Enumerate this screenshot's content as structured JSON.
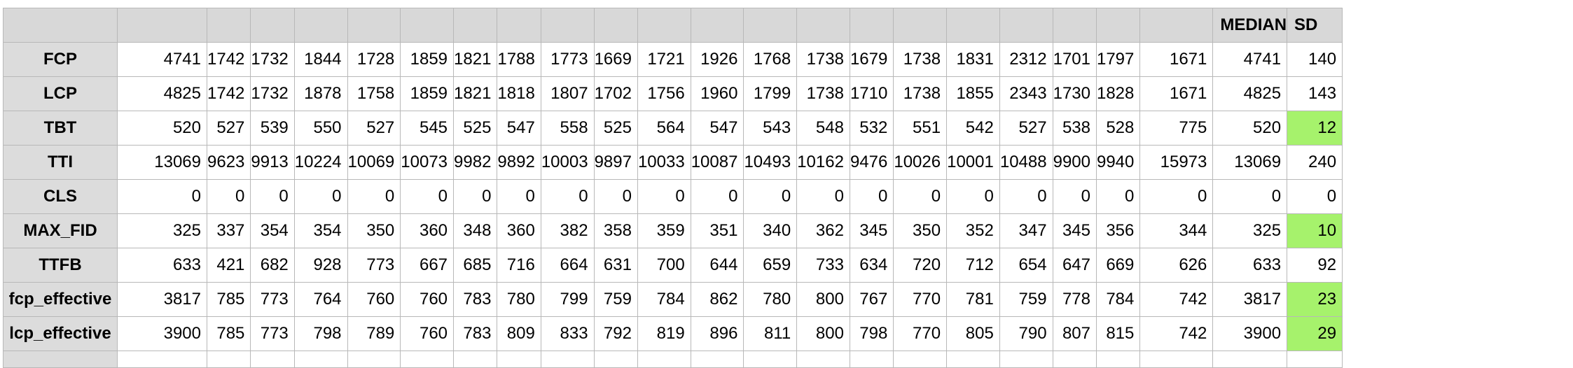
{
  "header": {
    "median_label": "MEDIAN",
    "sd_label": "SD"
  },
  "highlight_color": "#a6f26c",
  "rows": [
    {
      "label": "FCP",
      "values": [
        "4741",
        "1742",
        "1732",
        "1844",
        "1728",
        "1859",
        "1821",
        "1788",
        "1773",
        "1669",
        "1721",
        "1926",
        "1768",
        "1738",
        "1679",
        "1738",
        "1831",
        "2312",
        "1701",
        "1797",
        "1671"
      ],
      "median": "4741",
      "sd": "140",
      "sd_highlight": false
    },
    {
      "label": "LCP",
      "values": [
        "4825",
        "1742",
        "1732",
        "1878",
        "1758",
        "1859",
        "1821",
        "1818",
        "1807",
        "1702",
        "1756",
        "1960",
        "1799",
        "1738",
        "1710",
        "1738",
        "1855",
        "2343",
        "1730",
        "1828",
        "1671"
      ],
      "median": "4825",
      "sd": "143",
      "sd_highlight": false
    },
    {
      "label": "TBT",
      "values": [
        "520",
        "527",
        "539",
        "550",
        "527",
        "545",
        "525",
        "547",
        "558",
        "525",
        "564",
        "547",
        "543",
        "548",
        "532",
        "551",
        "542",
        "527",
        "538",
        "528",
        "775"
      ],
      "median": "520",
      "sd": "12",
      "sd_highlight": true
    },
    {
      "label": "TTI",
      "values": [
        "13069",
        "9623",
        "9913",
        "10224",
        "10069",
        "10073",
        "9982",
        "9892",
        "10003",
        "9897",
        "10033",
        "10087",
        "10493",
        "10162",
        "9476",
        "10026",
        "10001",
        "10488",
        "9900",
        "9940",
        "15973"
      ],
      "median": "13069",
      "sd": "240",
      "sd_highlight": false
    },
    {
      "label": "CLS",
      "values": [
        "0",
        "0",
        "0",
        "0",
        "0",
        "0",
        "0",
        "0",
        "0",
        "0",
        "0",
        "0",
        "0",
        "0",
        "0",
        "0",
        "0",
        "0",
        "0",
        "0",
        "0"
      ],
      "median": "0",
      "sd": "0",
      "sd_highlight": false
    },
    {
      "label": "MAX_FID",
      "values": [
        "325",
        "337",
        "354",
        "354",
        "350",
        "360",
        "348",
        "360",
        "382",
        "358",
        "359",
        "351",
        "340",
        "362",
        "345",
        "350",
        "352",
        "347",
        "345",
        "356",
        "344"
      ],
      "median": "325",
      "sd": "10",
      "sd_highlight": true
    },
    {
      "label": "TTFB",
      "values": [
        "633",
        "421",
        "682",
        "928",
        "773",
        "667",
        "685",
        "716",
        "664",
        "631",
        "700",
        "644",
        "659",
        "733",
        "634",
        "720",
        "712",
        "654",
        "647",
        "669",
        "626"
      ],
      "median": "633",
      "sd": "92",
      "sd_highlight": false
    },
    {
      "label": "fcp_effective",
      "values": [
        "3817",
        "785",
        "773",
        "764",
        "760",
        "760",
        "783",
        "780",
        "799",
        "759",
        "784",
        "862",
        "780",
        "800",
        "767",
        "770",
        "781",
        "759",
        "778",
        "784",
        "742"
      ],
      "median": "3817",
      "sd": "23",
      "sd_highlight": true
    },
    {
      "label": "lcp_effective",
      "values": [
        "3900",
        "785",
        "773",
        "798",
        "789",
        "760",
        "783",
        "809",
        "833",
        "792",
        "819",
        "896",
        "811",
        "800",
        "798",
        "770",
        "805",
        "790",
        "807",
        "815",
        "742"
      ],
      "median": "3900",
      "sd": "29",
      "sd_highlight": true
    }
  ]
}
